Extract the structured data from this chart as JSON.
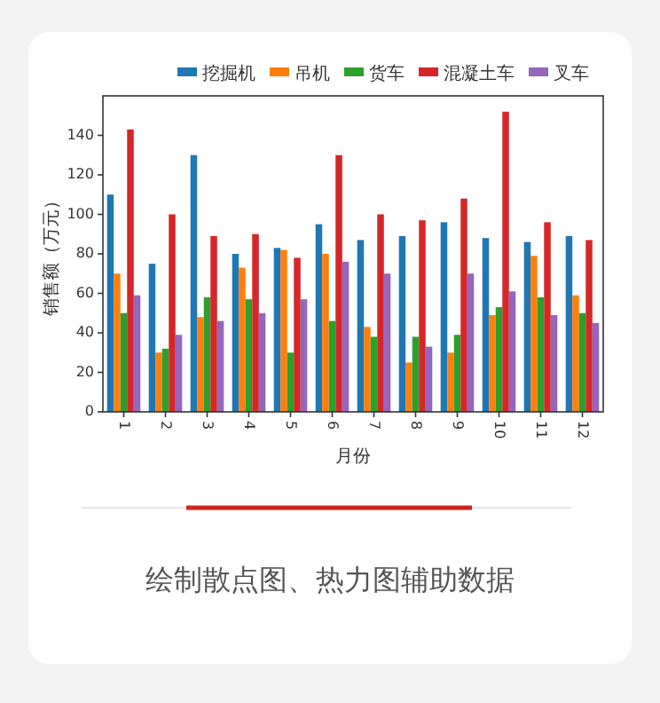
{
  "chart_data": {
    "type": "bar",
    "xlabel": "月份",
    "ylabel": "销售额（万元）",
    "categories": [
      "1",
      "2",
      "3",
      "4",
      "5",
      "6",
      "7",
      "8",
      "9",
      "10",
      "11",
      "12"
    ],
    "series": [
      {
        "name": "挖掘机",
        "color": "#1f77b4",
        "values": [
          110,
          75,
          130,
          80,
          83,
          95,
          87,
          89,
          96,
          88,
          86,
          89
        ]
      },
      {
        "name": "吊机",
        "color": "#ff7f0e",
        "values": [
          70,
          30,
          48,
          73,
          82,
          80,
          43,
          25,
          30,
          49,
          79,
          59
        ]
      },
      {
        "name": "货车",
        "color": "#2ca02c",
        "values": [
          50,
          32,
          58,
          57,
          30,
          46,
          38,
          38,
          39,
          53,
          58,
          50
        ]
      },
      {
        "name": "混凝土车",
        "color": "#d62728",
        "values": [
          143,
          100,
          89,
          90,
          78,
          130,
          100,
          97,
          108,
          152,
          96,
          87
        ]
      },
      {
        "name": "叉车",
        "color": "#9467bd",
        "values": [
          59,
          39,
          46,
          50,
          57,
          76,
          70,
          33,
          70,
          61,
          49,
          45
        ]
      }
    ],
    "ylim": [
      0,
      160
    ],
    "yticks": [
      0,
      20,
      40,
      60,
      80,
      100,
      120,
      140
    ],
    "grid": false,
    "legend": "top right",
    "annotations": [
      "绘制散点图、热力图辅助数据"
    ]
  }
}
